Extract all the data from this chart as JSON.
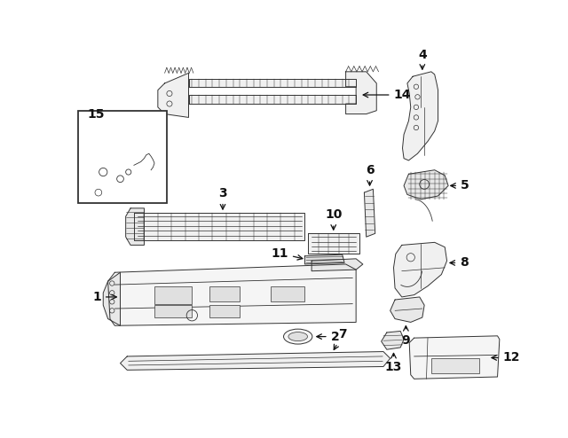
{
  "bg_color": "#ffffff",
  "line_color": "#333333",
  "figsize": [
    6.4,
    4.94
  ],
  "dpi": 100,
  "label_fontsize": 10,
  "label_fontweight": "bold",
  "arrow_lw": 0.9,
  "part_lw": 0.7
}
